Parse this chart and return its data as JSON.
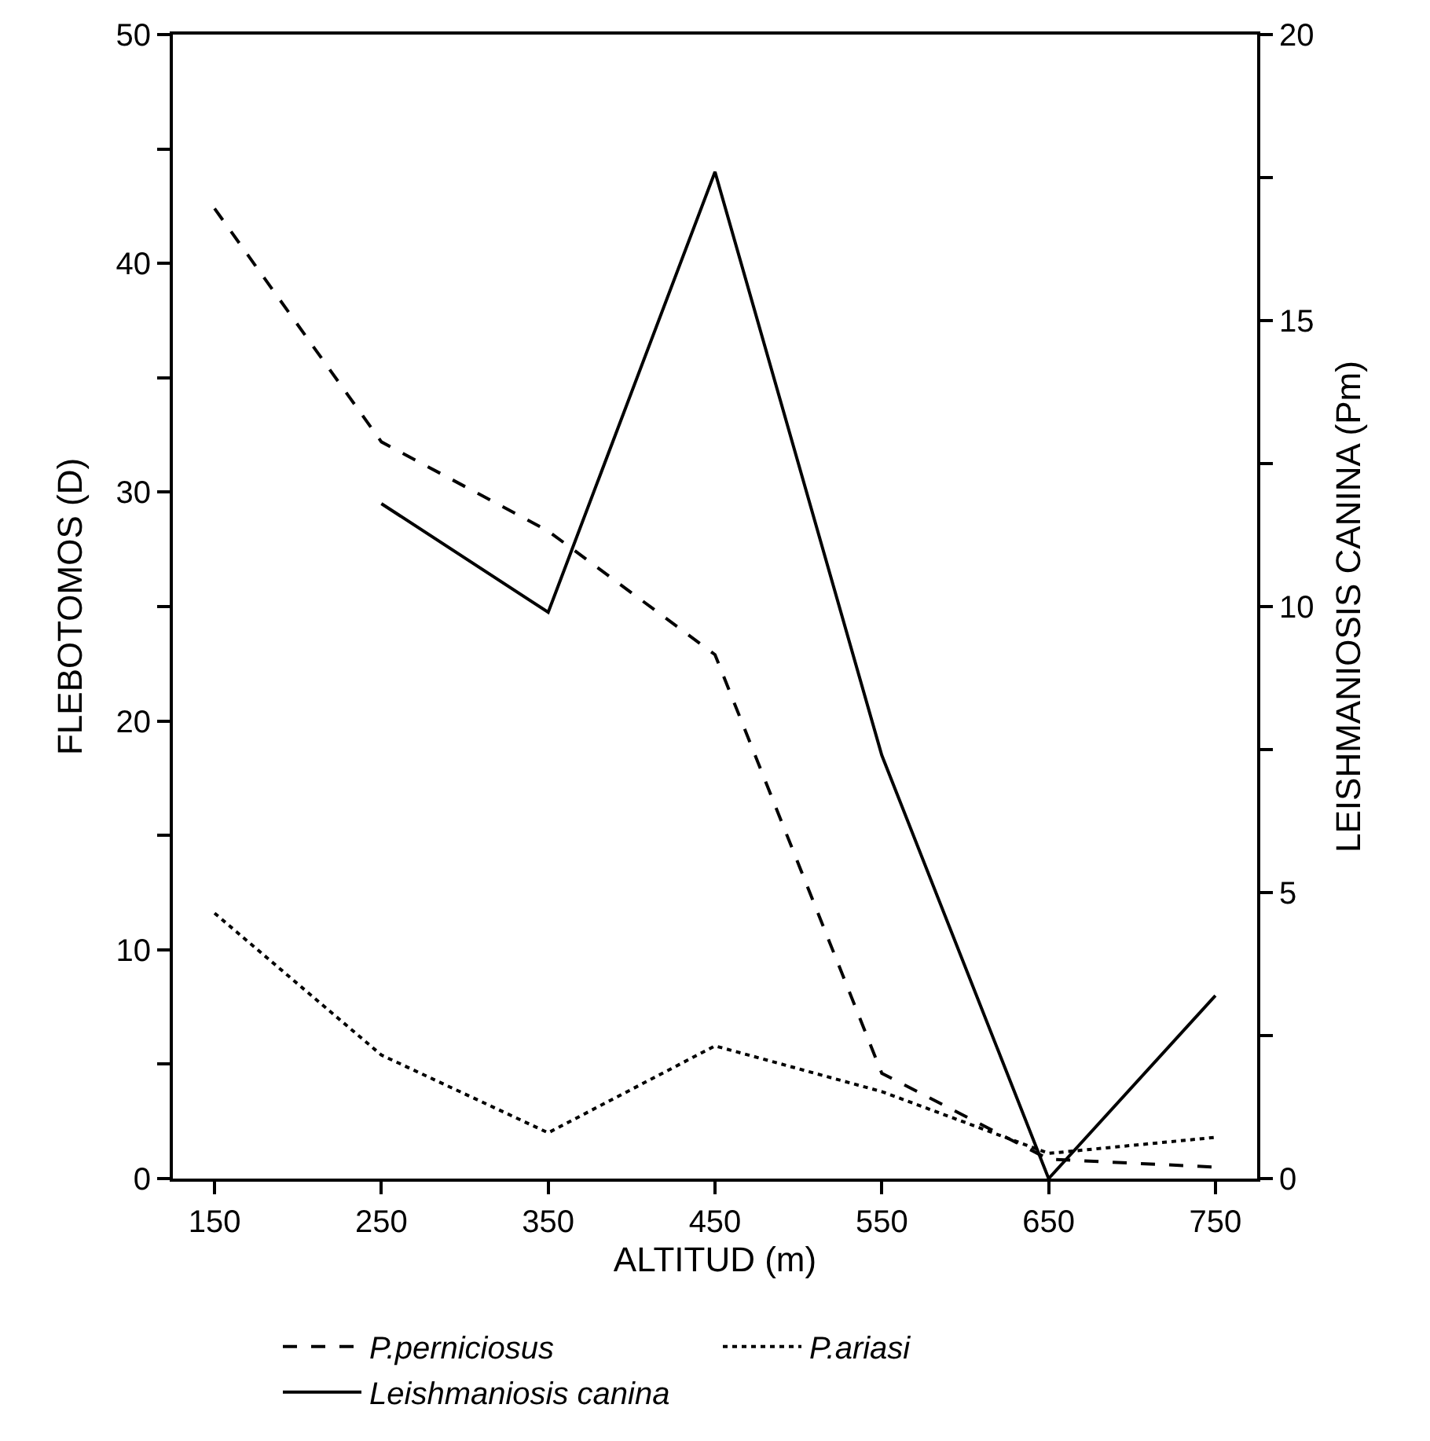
{
  "chart_data": {
    "type": "line",
    "xlabel": "ALTITUD (m)",
    "ylabel": "FLEBOTOMOS (D)",
    "y2label": "LEISHMANIOSIS CANINA (Pm)",
    "x": [
      150,
      250,
      350,
      450,
      550,
      650,
      750
    ],
    "xlim": [
      125,
      775
    ],
    "xticks": [
      150,
      250,
      350,
      450,
      550,
      650,
      750
    ],
    "ylim": [
      0,
      50
    ],
    "yticks": [
      0,
      {
        "value": 5,
        "label": null
      },
      10,
      {
        "value": 15,
        "label": null
      },
      20,
      {
        "value": 25,
        "label": null
      },
      30,
      {
        "value": 35,
        "label": null
      },
      40,
      {
        "value": 45,
        "label": null
      },
      50
    ],
    "y2lim": [
      0,
      20
    ],
    "y2ticks": [
      0,
      {
        "value": 2.5,
        "label": null
      },
      5,
      {
        "value": 7.5,
        "label": null
      },
      10,
      {
        "value": 12.5,
        "label": null
      },
      15,
      {
        "value": 17.5,
        "label": null
      },
      20
    ],
    "series": [
      {
        "name": "P.perniciosus",
        "color": "#000000",
        "line_style": "dashed",
        "values": [
          42.4,
          32.2,
          28.3,
          22.9,
          4.6,
          0.85,
          0.5
        ]
      },
      {
        "name": "P.ariasi",
        "color": "#000000",
        "line_style": "dotted",
        "values": [
          11.6,
          5.4,
          2.0,
          5.8,
          3.8,
          1.1,
          1.8
        ]
      },
      {
        "name": "Leishmaniosis canina",
        "color": "#000000",
        "line_style": "solid",
        "axis": "y2",
        "values": [
          null,
          11.8,
          9.9,
          17.6,
          7.4,
          0,
          3.2
        ]
      }
    ],
    "legend": "bottom",
    "marker": "none"
  }
}
